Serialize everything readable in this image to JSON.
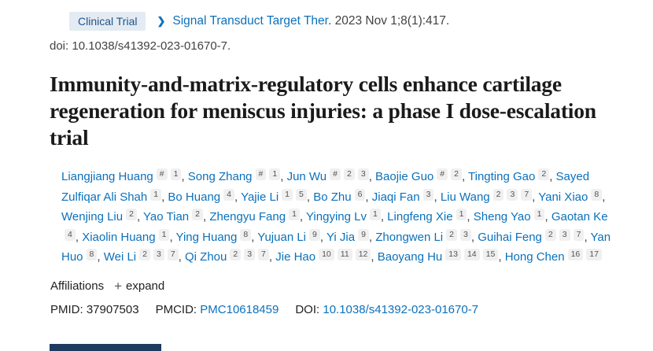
{
  "header": {
    "article_type": "Clinical Trial",
    "journal": "Signal Transduct Target Ther",
    "citation_rest": ". 2023 Nov 1;8(1):417.",
    "doi_line": "doi: 10.1038/s41392-023-01670-7."
  },
  "icons": {
    "chevron_right": "❯",
    "plus": "+"
  },
  "title": "Immunity-and-matrix-regulatory cells enhance cartilage regeneration for meniscus injuries: a phase I dose-escalation trial",
  "authors": [
    {
      "name": "Liangjiang Huang",
      "sups": [
        "#",
        "1"
      ]
    },
    {
      "name": "Song Zhang",
      "sups": [
        "#",
        "1"
      ]
    },
    {
      "name": "Jun Wu",
      "sups": [
        "#",
        "2",
        "3"
      ]
    },
    {
      "name": "Baojie Guo",
      "sups": [
        "#",
        "2"
      ]
    },
    {
      "name": "Tingting Gao",
      "sups": [
        "2"
      ]
    },
    {
      "name": "Sayed Zulfiqar Ali Shah",
      "sups": [
        "1"
      ]
    },
    {
      "name": "Bo Huang",
      "sups": [
        "4"
      ]
    },
    {
      "name": "Yajie Li",
      "sups": [
        "1",
        "5"
      ]
    },
    {
      "name": "Bo Zhu",
      "sups": [
        "6"
      ]
    },
    {
      "name": "Jiaqi Fan",
      "sups": [
        "3"
      ]
    },
    {
      "name": "Liu Wang",
      "sups": [
        "2",
        "3",
        "7"
      ]
    },
    {
      "name": "Yani Xiao",
      "sups": [
        "8"
      ]
    },
    {
      "name": "Wenjing Liu",
      "sups": [
        "2"
      ]
    },
    {
      "name": "Yao Tian",
      "sups": [
        "2"
      ]
    },
    {
      "name": "Zhengyu Fang",
      "sups": [
        "1"
      ]
    },
    {
      "name": "Yingying Lv",
      "sups": [
        "1"
      ]
    },
    {
      "name": "Lingfeng Xie",
      "sups": [
        "1"
      ]
    },
    {
      "name": "Sheng Yao",
      "sups": [
        "1"
      ]
    },
    {
      "name": "Gaotan Ke",
      "sups": [
        "4"
      ]
    },
    {
      "name": "Xiaolin Huang",
      "sups": [
        "1"
      ]
    },
    {
      "name": "Ying Huang",
      "sups": [
        "8"
      ]
    },
    {
      "name": "Yujuan Li",
      "sups": [
        "9"
      ]
    },
    {
      "name": "Yi Jia",
      "sups": [
        "9"
      ]
    },
    {
      "name": "Zhongwen Li",
      "sups": [
        "2",
        "3"
      ]
    },
    {
      "name": "Guihai Feng",
      "sups": [
        "2",
        "3",
        "7"
      ]
    },
    {
      "name": "Yan Huo",
      "sups": [
        "8"
      ]
    },
    {
      "name": "Wei Li",
      "sups": [
        "2",
        "3",
        "7"
      ]
    },
    {
      "name": "Qi Zhou",
      "sups": [
        "2",
        "3",
        "7"
      ]
    },
    {
      "name": "Jie Hao",
      "sups": [
        "10",
        "11",
        "12"
      ]
    },
    {
      "name": "Baoyang Hu",
      "sups": [
        "13",
        "14",
        "15"
      ]
    },
    {
      "name": "Hong Chen",
      "sups": [
        "16",
        "17"
      ]
    }
  ],
  "affiliations": {
    "label": "Affiliations",
    "expand_label": "expand"
  },
  "identifiers": {
    "pmid_label": "PMID:",
    "pmid_value": "37907503",
    "pmcid_label": "PMCID:",
    "pmcid_value": "PMC10618459",
    "doi_label": "DOI:",
    "doi_value": "10.1038/s41392-023-01670-7"
  },
  "colors": {
    "link_blue": "#0b71bb",
    "badge_background": "#e4ebf3",
    "badge_text": "#20558a",
    "chip_background": "#f0f0f0",
    "chip_text": "#555555",
    "title_text": "#1a1a1a",
    "body_text": "#424242",
    "cropped_bar": "#1e3a5f"
  }
}
